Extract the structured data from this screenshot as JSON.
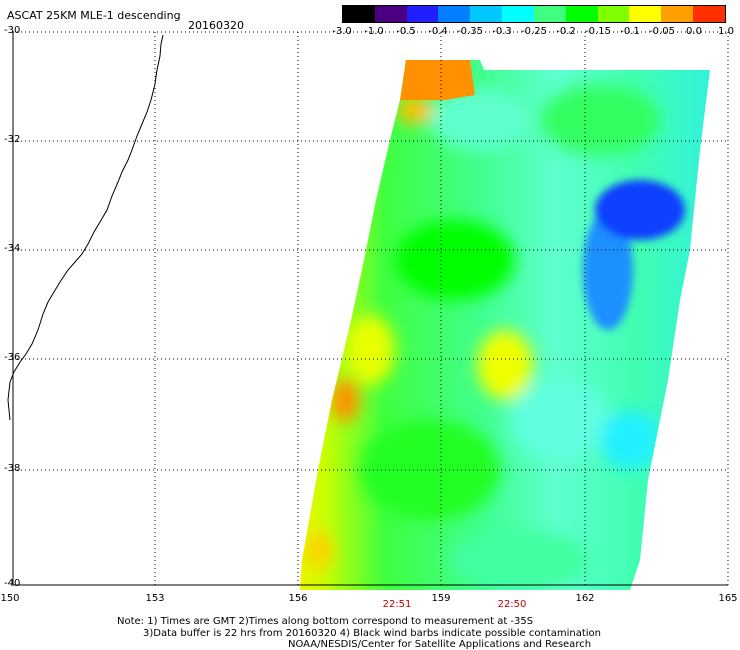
{
  "header": {
    "title": "ASCAT 25KM MLE-1 descending",
    "date": "20160320"
  },
  "colorbar": {
    "labels": [
      "-3.0",
      "-1.0",
      "-0.5",
      "-0.4",
      "-0.35",
      "-0.3",
      "-0.25",
      "-0.2",
      "-0.15",
      "-0.1",
      "-0.05",
      "0.0",
      "1.0"
    ],
    "colors": [
      "#000000",
      "#4a0080",
      "#2020ff",
      "#0080ff",
      "#00c8ff",
      "#00ffff",
      "#40ff80",
      "#00ff00",
      "#80ff00",
      "#ffff00",
      "#ffa000",
      "#ff3000"
    ]
  },
  "map": {
    "latitudes": [
      "-30",
      "-32",
      "-34",
      "-36",
      "-38",
      "-40"
    ],
    "longitudes": [
      "150",
      "153",
      "156",
      "159",
      "162",
      "165"
    ],
    "times": [
      "22:51",
      "22:50"
    ]
  },
  "notes": {
    "line1": "Note: 1) Times are GMT 2)Times along bottom correspond to measurement at -35S",
    "line2": "3)Data buffer is 22 hrs from 20160320 4) Black wind barbs indicate possible contamination",
    "line3": "NOAA/NESDIS/Center for Satellite Applications and Research"
  }
}
